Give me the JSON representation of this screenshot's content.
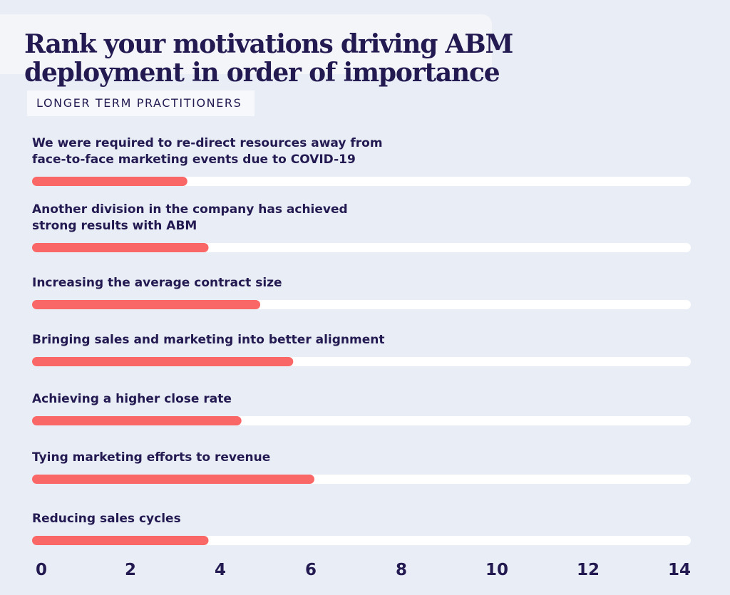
{
  "title_lines": [
    "Rank your motivations driving ABM",
    "deployment in order of importance"
  ],
  "subtitle": "LONGER TERM PRACTITIONERS",
  "colors": {
    "bar": "#fa6767",
    "track": "#ffffff",
    "text": "#231a52",
    "background": "#e9edf5"
  },
  "chart_data": {
    "type": "bar",
    "orientation": "horizontal",
    "title": "Rank your motivations driving ABM deployment in order of importance",
    "subtitle": "LONGER TERM PRACTITIONERS",
    "categories": [
      [
        "We were required to re-direct resources away from",
        "face-to-face marketing events due to COVID-19"
      ],
      [
        "Another division in the company has achieved",
        "strong results with ABM"
      ],
      [
        "Increasing the average contract size"
      ],
      [
        "Bringing sales and marketing into better alignment"
      ],
      [
        "Achieving a higher close rate"
      ],
      [
        "Tying marketing efforts to revenue"
      ],
      [
        "Reducing sales cycles"
      ]
    ],
    "values": [
      3.3,
      3.75,
      4.85,
      5.55,
      4.45,
      6.0,
      3.75
    ],
    "xlim": [
      0,
      14
    ],
    "xticks": [
      "0",
      "2",
      "4",
      "6",
      "8",
      "10",
      "12",
      "14"
    ],
    "grid": false,
    "legend": "none"
  }
}
